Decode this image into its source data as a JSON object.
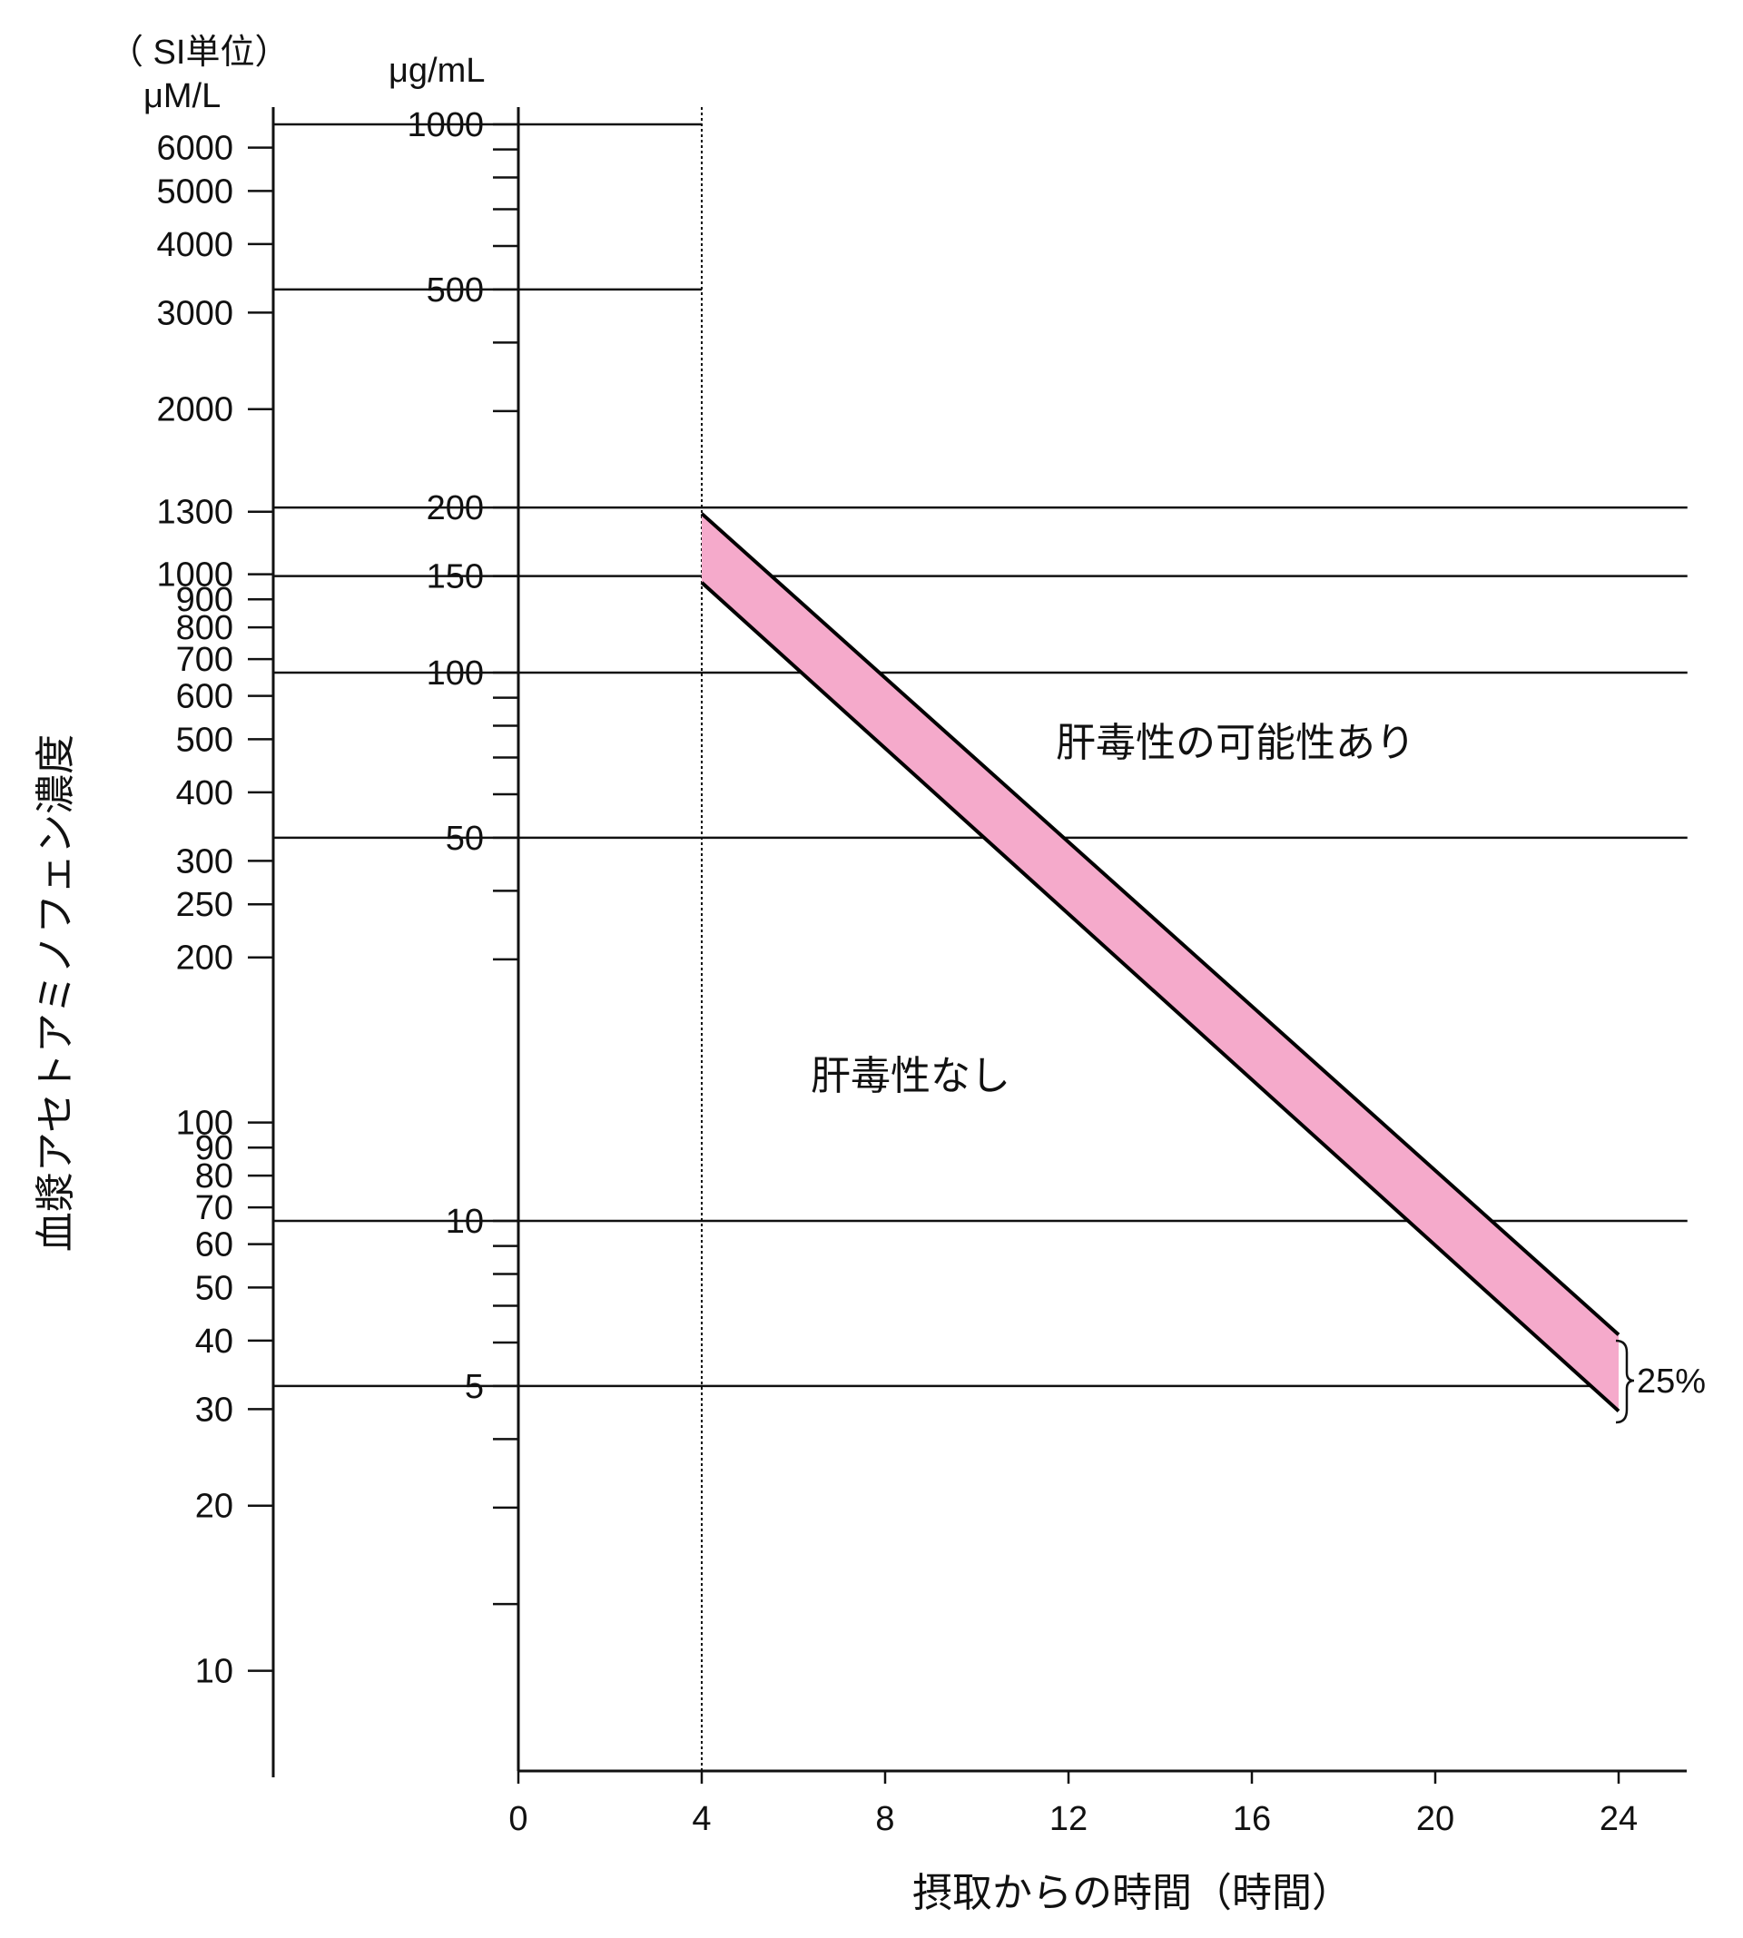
{
  "chart_data": {
    "type": "line",
    "title": "",
    "xlabel": "摂取からの時間（時間）",
    "ylabel": "血漿アセトアミノフェン濃度",
    "x_axis": {
      "ticks": [
        0,
        4,
        8,
        12,
        16,
        20,
        24
      ],
      "range": [
        0,
        25.5
      ]
    },
    "y_axis_left": {
      "unit_system": "（ SI単位）",
      "unit": "μM/L",
      "scale": "log",
      "ticks": [
        6000,
        5000,
        4000,
        3000,
        2000,
        1300,
        1000,
        900,
        800,
        700,
        600,
        500,
        400,
        300,
        250,
        200,
        100,
        90,
        80,
        70,
        60,
        50,
        40,
        30,
        20,
        10
      ]
    },
    "y_axis_right": {
      "unit": "μg/mL",
      "scale": "log",
      "range": [
        1.3,
        1000
      ],
      "labeled_ticks": [
        1000,
        500,
        200,
        150,
        100,
        50,
        10,
        5
      ],
      "minor_ticks": [
        900,
        800,
        700,
        600,
        400,
        300,
        90,
        80,
        70,
        60,
        40,
        30,
        9,
        8,
        7,
        6,
        4,
        3,
        2
      ]
    },
    "reference_lines_ugml": [
      1000,
      500,
      200,
      150,
      100,
      50,
      10,
      5
    ],
    "reference_line_right_end_hours": [
      4,
      4,
      25.5,
      25.5,
      25.5,
      25.5,
      25.5,
      23.5
    ],
    "vertical_line_hours": 4,
    "band": {
      "upper": {
        "x": [
          4,
          24
        ],
        "y": [
          195,
          6.2
        ]
      },
      "lower": {
        "x": [
          4,
          24
        ],
        "y": [
          146,
          4.5
        ]
      },
      "color": "#f5aacb",
      "label": "25%"
    },
    "region_labels": {
      "above": "肝毒性の可能性あり",
      "below": "肝毒性なし"
    }
  }
}
